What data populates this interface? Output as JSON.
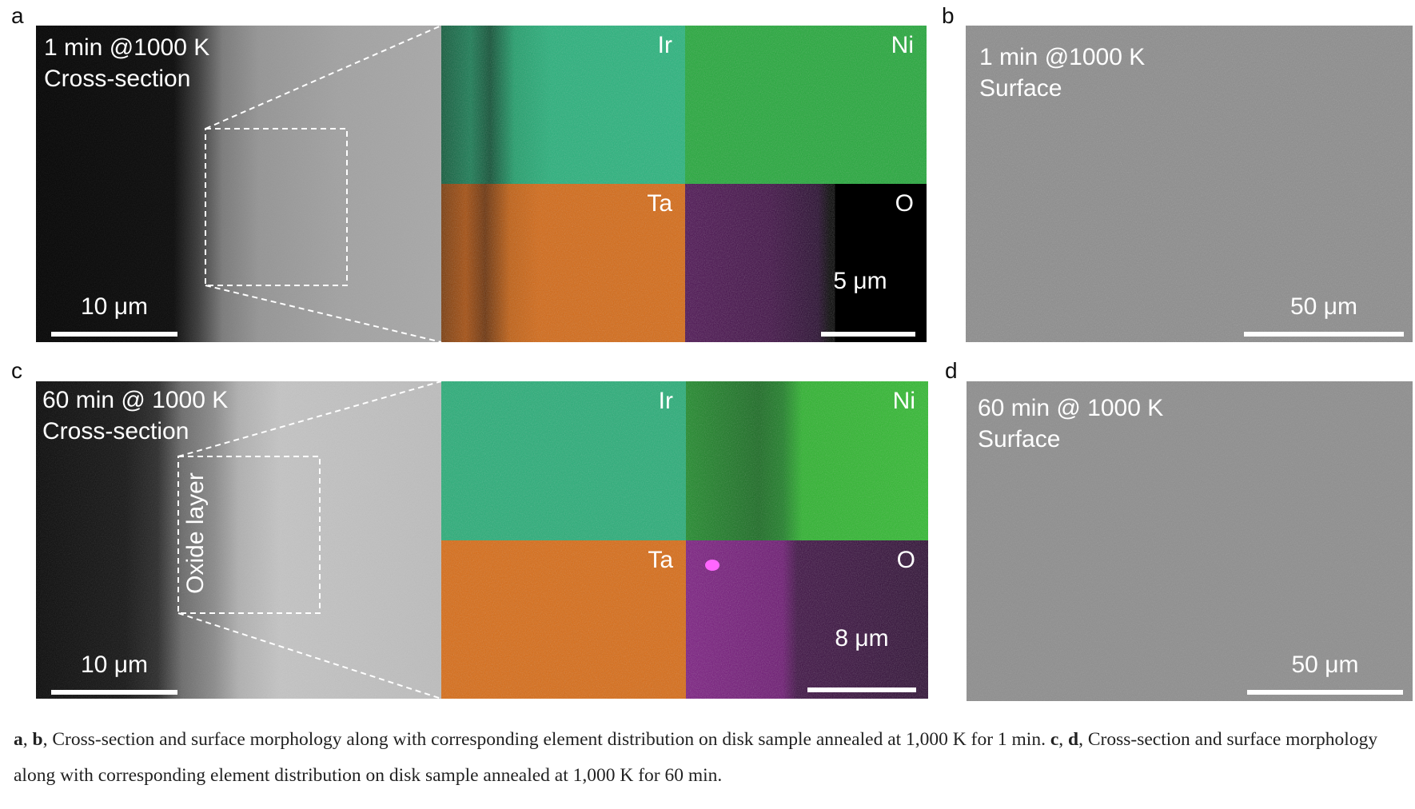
{
  "figure": {
    "a": {
      "label": "a",
      "lines": [
        "1 min @1000 K",
        "Cross-section"
      ],
      "scale_bar": "10 μm"
    },
    "a_maps": {
      "elements": [
        "Ir",
        "Ni",
        "Ta",
        "O"
      ],
      "scale_bar": "5 μm"
    },
    "b": {
      "label": "b",
      "lines": [
        "1 min @1000 K",
        "Surface"
      ],
      "scale_bar": "50 μm"
    },
    "c": {
      "label": "c",
      "lines": [
        "60 min @ 1000 K",
        "Cross-section"
      ],
      "annotation": "Oxide layer",
      "scale_bar": "10 μm"
    },
    "c_maps": {
      "elements": [
        "Ir",
        "Ni",
        "Ta",
        "O"
      ],
      "scale_bar": "8 μm"
    },
    "d": {
      "label": "d",
      "lines": [
        "60 min @ 1000 K",
        "Surface"
      ],
      "scale_bar": "50 μm"
    }
  },
  "caption": [
    {
      "text": "a",
      "bold": true
    },
    {
      "text": ", ",
      "bold": false
    },
    {
      "text": "b",
      "bold": true
    },
    {
      "text": ", Cross-section and surface morphology along with corresponding element distribution on disk sample annealed at 1,000 K for 1 min. ",
      "bold": false
    },
    {
      "text": "c",
      "bold": true
    },
    {
      "text": ", ",
      "bold": false
    },
    {
      "text": "d",
      "bold": true
    },
    {
      "text": ", Cross-section and surface morphology along with corresponding element distribution on disk sample annealed at 1,000 K for 60 min.",
      "bold": false
    }
  ]
}
